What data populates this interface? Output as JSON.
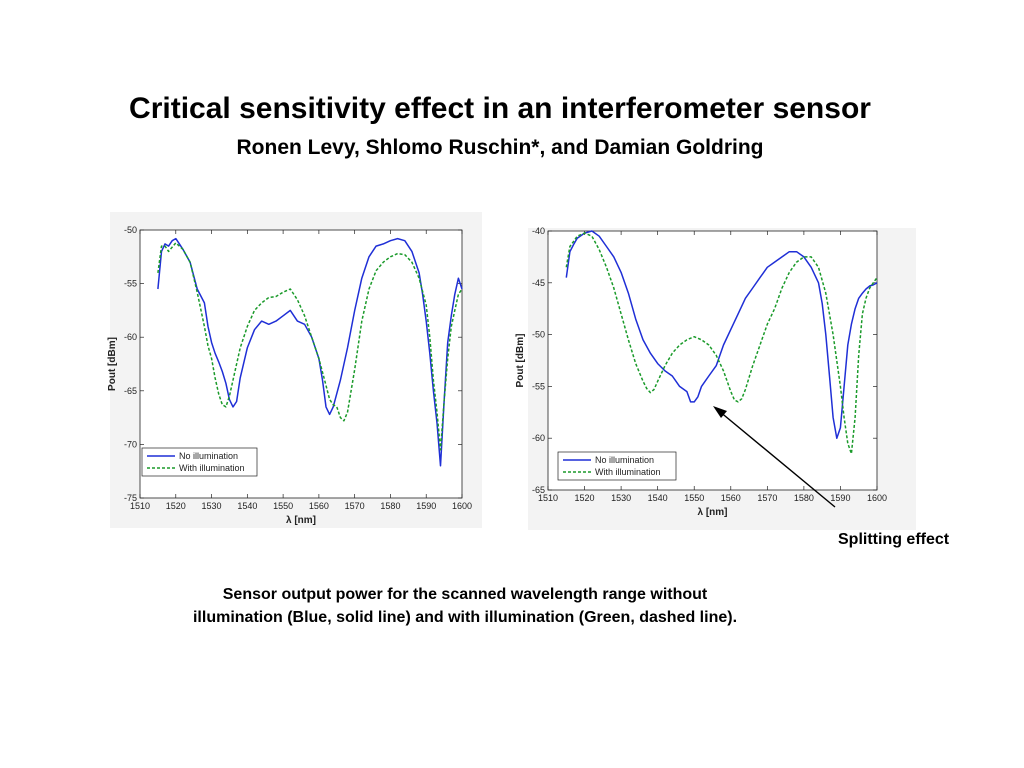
{
  "slide": {
    "title": "Critical sensitivity effect in an interferometer sensor",
    "authors": "Ronen Levy, Shlomo Ruschin*, and Damian Goldring",
    "annotation": "Splitting effect",
    "caption_line1": "Sensor output power for the scanned wavelength range without",
    "caption_line2": "illumination (Blue, solid line) and with illumination (Green, dashed line)."
  },
  "colors": {
    "no_illumination": "#1f2fd6",
    "with_illumination": "#1a9a2a",
    "arrow": "#000000"
  },
  "chart_data": [
    {
      "type": "line",
      "xlabel": "λ [nm]",
      "ylabel": "Pout [dBm]",
      "xlim": [
        1510,
        1600
      ],
      "ylim": [
        -75,
        -50
      ],
      "xticks": [
        1510,
        1520,
        1530,
        1540,
        1550,
        1560,
        1570,
        1580,
        1590,
        1600
      ],
      "yticks": [
        -50,
        -55,
        -60,
        -65,
        -70,
        -75
      ],
      "grid": false,
      "legend_position": "bottom-left",
      "series": [
        {
          "name": "No illumination",
          "style": "solid",
          "x": [
            1515,
            1516,
            1517,
            1518,
            1519,
            1520,
            1521,
            1522,
            1524,
            1526,
            1528,
            1529,
            1530,
            1531,
            1532,
            1533,
            1534,
            1535,
            1536,
            1537,
            1538,
            1540,
            1542,
            1544,
            1546,
            1548,
            1550,
            1552,
            1554,
            1556,
            1558,
            1560,
            1561,
            1562,
            1563,
            1564,
            1566,
            1568,
            1570,
            1572,
            1574,
            1576,
            1578,
            1580,
            1582,
            1584,
            1586,
            1588,
            1589,
            1590,
            1591,
            1592,
            1593,
            1594,
            1595,
            1596,
            1597,
            1598,
            1599,
            1600
          ],
          "y": [
            -55.5,
            -52,
            -51.3,
            -51.5,
            -51,
            -50.8,
            -51.3,
            -51.8,
            -53,
            -55.5,
            -56.8,
            -59,
            -60.5,
            -61.5,
            -62.3,
            -63.2,
            -64.3,
            -65.8,
            -66.5,
            -66,
            -63.8,
            -61,
            -59.3,
            -58.5,
            -58.8,
            -58.5,
            -58,
            -57.5,
            -58.5,
            -58.8,
            -60,
            -62,
            -64,
            -66.5,
            -67.2,
            -66.5,
            -64,
            -61,
            -57.5,
            -54.5,
            -52.5,
            -51.5,
            -51.3,
            -51,
            -50.8,
            -51,
            -52,
            -54,
            -56,
            -58.5,
            -61.5,
            -65,
            -68,
            -72,
            -66,
            -60.5,
            -58,
            -56,
            -54.5,
            -55.5
          ]
        },
        {
          "name": "With illumination",
          "style": "dashed",
          "x": [
            1515,
            1516,
            1517,
            1518,
            1520,
            1522,
            1524,
            1526,
            1528,
            1529,
            1530,
            1531,
            1532,
            1533,
            1534,
            1535,
            1536,
            1537,
            1538,
            1540,
            1542,
            1544,
            1546,
            1548,
            1550,
            1552,
            1554,
            1556,
            1558,
            1560,
            1562,
            1563,
            1564,
            1565,
            1566,
            1567,
            1568,
            1570,
            1572,
            1574,
            1576,
            1578,
            1580,
            1582,
            1584,
            1586,
            1588,
            1590,
            1591,
            1592,
            1593,
            1594,
            1595,
            1596,
            1597,
            1598,
            1599,
            1600
          ],
          "y": [
            -54,
            -51.5,
            -51.5,
            -52,
            -51.2,
            -51.8,
            -53,
            -55.8,
            -59,
            -60.8,
            -62,
            -63.8,
            -65.3,
            -66.3,
            -66.5,
            -65.5,
            -64,
            -62.5,
            -61,
            -59,
            -57.5,
            -56.8,
            -56.3,
            -56.2,
            -55.8,
            -55.5,
            -56.5,
            -58,
            -60,
            -62,
            -64.5,
            -65.8,
            -66.3,
            -66.5,
            -67.5,
            -67.8,
            -67,
            -63,
            -58.5,
            -55.5,
            -53.8,
            -53,
            -52.5,
            -52.2,
            -52.3,
            -53,
            -54.5,
            -57,
            -60,
            -64,
            -67,
            -70.5,
            -66,
            -62,
            -59,
            -57.5,
            -56,
            -55.5
          ]
        }
      ]
    },
    {
      "type": "line",
      "xlabel": "λ [nm]",
      "ylabel": "Pout [dBm]",
      "xlim": [
        1510,
        1600
      ],
      "ylim": [
        -65,
        -40
      ],
      "xticks": [
        1510,
        1520,
        1530,
        1540,
        1550,
        1560,
        1570,
        1580,
        1590,
        1600
      ],
      "yticks": [
        -40,
        -45,
        -50,
        -55,
        -60,
        -65
      ],
      "grid": false,
      "legend_position": "bottom-left",
      "series": [
        {
          "name": "No illumination",
          "style": "solid",
          "x": [
            1515,
            1516,
            1517,
            1518,
            1520,
            1522,
            1524,
            1526,
            1528,
            1530,
            1532,
            1534,
            1536,
            1538,
            1540,
            1542,
            1544,
            1546,
            1548,
            1549,
            1550,
            1551,
            1552,
            1554,
            1556,
            1558,
            1560,
            1562,
            1564,
            1566,
            1568,
            1570,
            1572,
            1574,
            1576,
            1578,
            1580,
            1582,
            1584,
            1585,
            1586,
            1587,
            1588,
            1589,
            1590,
            1591,
            1592,
            1593,
            1594,
            1595,
            1596,
            1597,
            1598,
            1599,
            1600
          ],
          "y": [
            -44.5,
            -42,
            -41.3,
            -40.7,
            -40.2,
            -40,
            -40.5,
            -41.5,
            -42.5,
            -44,
            -46,
            -48.5,
            -50.5,
            -51.8,
            -52.8,
            -53.5,
            -54,
            -55,
            -55.5,
            -56.5,
            -56.5,
            -56,
            -55,
            -54,
            -53,
            -51,
            -49.5,
            -48,
            -46.5,
            -45.5,
            -44.5,
            -43.5,
            -43,
            -42.5,
            -42,
            -42,
            -42.5,
            -43.5,
            -45,
            -47,
            -50,
            -54,
            -58,
            -60,
            -59,
            -55,
            -51,
            -49,
            -47.5,
            -46.5,
            -46,
            -45.6,
            -45.3,
            -45.2,
            -45
          ]
        },
        {
          "name": "With illumination",
          "style": "dashed",
          "x": [
            1515,
            1516,
            1517,
            1518,
            1520,
            1522,
            1524,
            1526,
            1528,
            1530,
            1532,
            1534,
            1536,
            1537,
            1538,
            1539,
            1540,
            1542,
            1544,
            1546,
            1548,
            1550,
            1552,
            1554,
            1556,
            1558,
            1560,
            1561,
            1562,
            1563,
            1564,
            1566,
            1568,
            1570,
            1572,
            1574,
            1576,
            1578,
            1580,
            1582,
            1584,
            1586,
            1588,
            1590,
            1591,
            1592,
            1593,
            1594,
            1595,
            1596,
            1597,
            1598,
            1599,
            1600
          ],
          "y": [
            -43.5,
            -41.5,
            -41,
            -40.5,
            -40.2,
            -40.5,
            -41.8,
            -43.5,
            -45.5,
            -48,
            -50.5,
            -52.8,
            -54.5,
            -55.2,
            -55.6,
            -55.3,
            -54.5,
            -53,
            -51.8,
            -51,
            -50.5,
            -50.2,
            -50.5,
            -51,
            -52,
            -53.5,
            -55.5,
            -56.3,
            -56.5,
            -56.2,
            -55.3,
            -53,
            -51,
            -49,
            -47.5,
            -45.5,
            -44,
            -43,
            -42.5,
            -42.5,
            -43.5,
            -46,
            -50,
            -55,
            -58,
            -60.5,
            -61.5,
            -58,
            -52,
            -48,
            -46.5,
            -45.5,
            -45,
            -44.5
          ]
        }
      ]
    }
  ]
}
